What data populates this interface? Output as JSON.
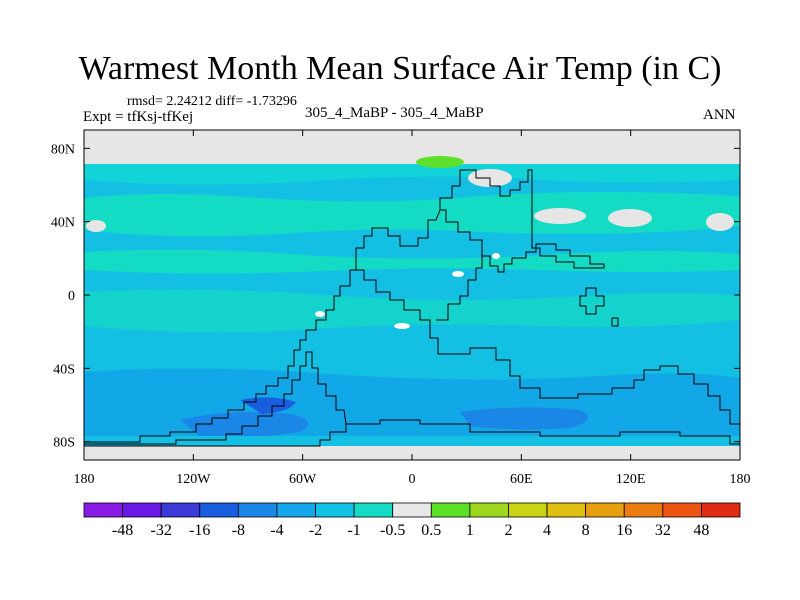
{
  "chart_data": {
    "type": "heatmap",
    "title": "Warmest Month Mean Surface Air Temp (in C)",
    "stats_line": "rmsd= 2.24212 diff= -1.73296",
    "expt_label": "Expt = tfKsj-tfKej",
    "comparison_label": "305_4_MaBP - 305_4_MaBP",
    "period_label": "ANN",
    "x_ticks": [
      {
        "value": -180,
        "label": "180"
      },
      {
        "value": -120,
        "label": "120W"
      },
      {
        "value": -60,
        "label": "60W"
      },
      {
        "value": 0,
        "label": "0"
      },
      {
        "value": 60,
        "label": "60E"
      },
      {
        "value": 120,
        "label": "120E"
      },
      {
        "value": 180,
        "label": "180"
      }
    ],
    "y_ticks": [
      {
        "value": 80,
        "label": "80N"
      },
      {
        "value": 40,
        "label": "40N"
      },
      {
        "value": 0,
        "label": "0"
      },
      {
        "value": -40,
        "label": "40S"
      },
      {
        "value": -80,
        "label": "80S"
      }
    ],
    "xlim": [
      -180,
      180
    ],
    "ylim": [
      -90,
      90
    ],
    "colorbar": {
      "colors": [
        "#8a1ae6",
        "#6a1ae6",
        "#3a3ad8",
        "#1a5ee0",
        "#1a86e6",
        "#14a8ea",
        "#12c2e6",
        "#14dcc4",
        "#e8e8e8",
        "#5ce02a",
        "#9ed81e",
        "#c8d414",
        "#e0c010",
        "#e8a010",
        "#ec7c10",
        "#ec5412",
        "#e02c14"
      ],
      "labels": [
        "-48",
        "-32",
        "-16",
        "-8",
        "-4",
        "-2",
        "-1",
        "-0.5",
        "0.5",
        "1",
        "2",
        "4",
        "8",
        "16",
        "32",
        "48"
      ]
    },
    "field": {
      "background_class": "-2 to -1",
      "regions": [
        {
          "class": "-1 to -0.5",
          "desc": "northern mid-latitude band"
        },
        {
          "class": "-1 to -0.5",
          "desc": "equatorial band"
        },
        {
          "class": "-4 to -2",
          "desc": "southern ocean band"
        },
        {
          "class": "-8 to -4",
          "desc": "south polar patches"
        },
        {
          "class": "-0.5 to 0.5",
          "desc": "north polar cap"
        },
        {
          "class": "1 to 2",
          "desc": "small arctic patch"
        }
      ]
    }
  }
}
